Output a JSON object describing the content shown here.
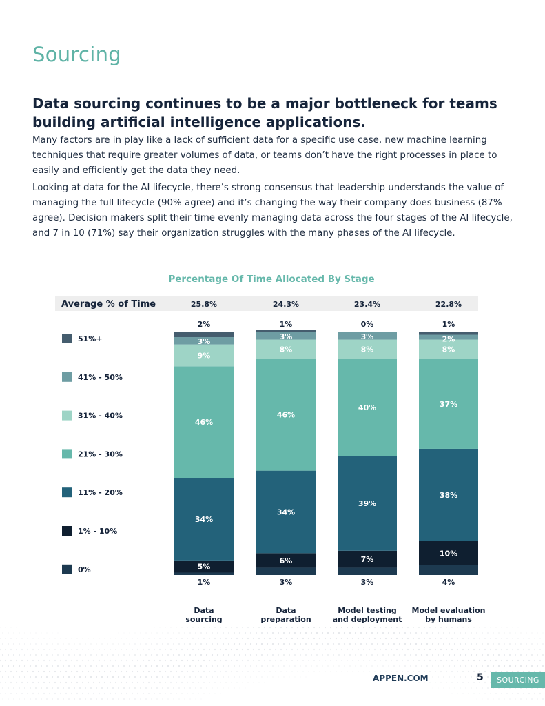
{
  "page": {
    "section_title": "Sourcing",
    "headline": "Data sourcing continues to be a major bottleneck for teams building artificial intelligence applications.",
    "paragraph1": "Many factors are in play like a lack of sufficient data for a specific use case, new machine learning techniques that require greater volumes of data, or teams don’t have the right processes in place to easily and efficiently get the data they need.",
    "paragraph2": "Looking at data for the AI lifecycle, there’s strong consensus that leadership understands the value of managing the full lifecycle (90% agree) and it’s changing the way their company does business (87% agree). Decision makers split their time evenly managing data across the four stages of the AI lifecycle, and 7 in 10 (71%) say their organization struggles with the many phases of the AI lifecycle."
  },
  "footer": {
    "url": "APPEN.COM",
    "page_number": "5",
    "section_tab": "SOURCING"
  },
  "colors": {
    "accent": "#5fb3a6",
    "dark_text": "#16243a"
  },
  "chart_data": {
    "type": "bar",
    "stacked": true,
    "title": "Percentage Of Time Allocated By Stage",
    "header_label": "Average % of Time",
    "averages": [
      "25.8%",
      "24.3%",
      "23.4%",
      "22.8%"
    ],
    "categories": [
      "Data sourcing",
      "Data preparation",
      "Model testing and deployment",
      "Model evaluation by humans"
    ],
    "category_lines": [
      [
        "Data",
        "sourcing"
      ],
      [
        "Data",
        "preparation"
      ],
      [
        "Model testing",
        "and deployment"
      ],
      [
        "Model evaluation",
        "by humans"
      ]
    ],
    "ylim": [
      0,
      100
    ],
    "series": [
      {
        "name": "0%",
        "color": "#1d3a50",
        "values": [
          1,
          3,
          3,
          4
        ],
        "labels": [
          "1%",
          "3%",
          "3%",
          "4%"
        ]
      },
      {
        "name": "1% - 10%",
        "color": "#0f1f30",
        "values": [
          5,
          6,
          7,
          10
        ],
        "labels": [
          "5%",
          "6%",
          "7%",
          "10%"
        ]
      },
      {
        "name": "11% - 20%",
        "color": "#23627a",
        "values": [
          34,
          34,
          39,
          38
        ],
        "labels": [
          "34%",
          "34%",
          "39%",
          "38%"
        ]
      },
      {
        "name": "21% - 30%",
        "color": "#66b8ab",
        "values": [
          46,
          46,
          40,
          37
        ],
        "labels": [
          "46%",
          "46%",
          "40%",
          "37%"
        ]
      },
      {
        "name": "31% - 40%",
        "color": "#9ed4c6",
        "values": [
          9,
          8,
          8,
          8
        ],
        "labels": [
          "9%",
          "8%",
          "8%",
          "8%"
        ]
      },
      {
        "name": "41% - 50%",
        "color": "#6e9da3",
        "values": [
          3,
          3,
          3,
          2
        ],
        "labels": [
          "3%",
          "3%",
          "3%",
          "2%"
        ]
      },
      {
        "name": "51%+",
        "color": "#455d6e",
        "values": [
          2,
          1,
          0,
          1
        ],
        "labels": [
          "2%",
          "1%",
          "0%",
          "1%"
        ]
      }
    ]
  }
}
